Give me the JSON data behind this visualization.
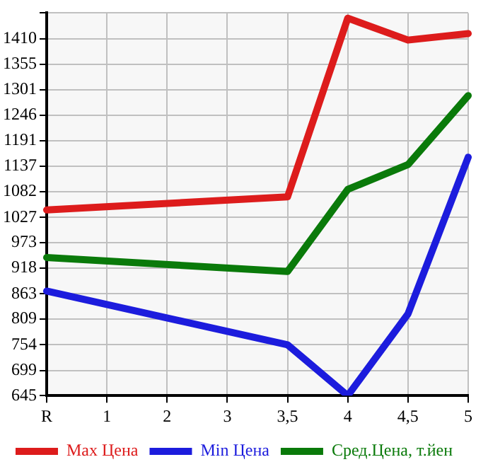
{
  "chart_data": {
    "type": "line",
    "categories": [
      "R",
      "1",
      "2",
      "3",
      "3,5",
      "4",
      "4,5",
      "5"
    ],
    "series": [
      {
        "name": "Max Цена",
        "color": "#dd1c1c",
        "values": [
          1043,
          null,
          null,
          null,
          1071,
          1454,
          1407,
          1421
        ]
      },
      {
        "name": "Min Цена",
        "color": "#1c1cdd",
        "values": [
          869,
          null,
          null,
          null,
          754,
          645,
          820,
          1156
        ]
      },
      {
        "name": "Сред.Цена, т.йен",
        "color": "#0a7a0a",
        "values": [
          941,
          null,
          null,
          null,
          911,
          1087,
          1140,
          1288
        ]
      }
    ],
    "ylim": [
      645,
      1465
    ],
    "yticks": [
      645,
      699,
      754,
      809,
      863,
      918,
      973,
      1027,
      1082,
      1137,
      1191,
      1246,
      1301,
      1355,
      1410,
      {
        "value": 1465,
        "label": null
      }
    ],
    "grid": true,
    "legend": "bottom",
    "marker": "none",
    "line_style": "solid"
  }
}
